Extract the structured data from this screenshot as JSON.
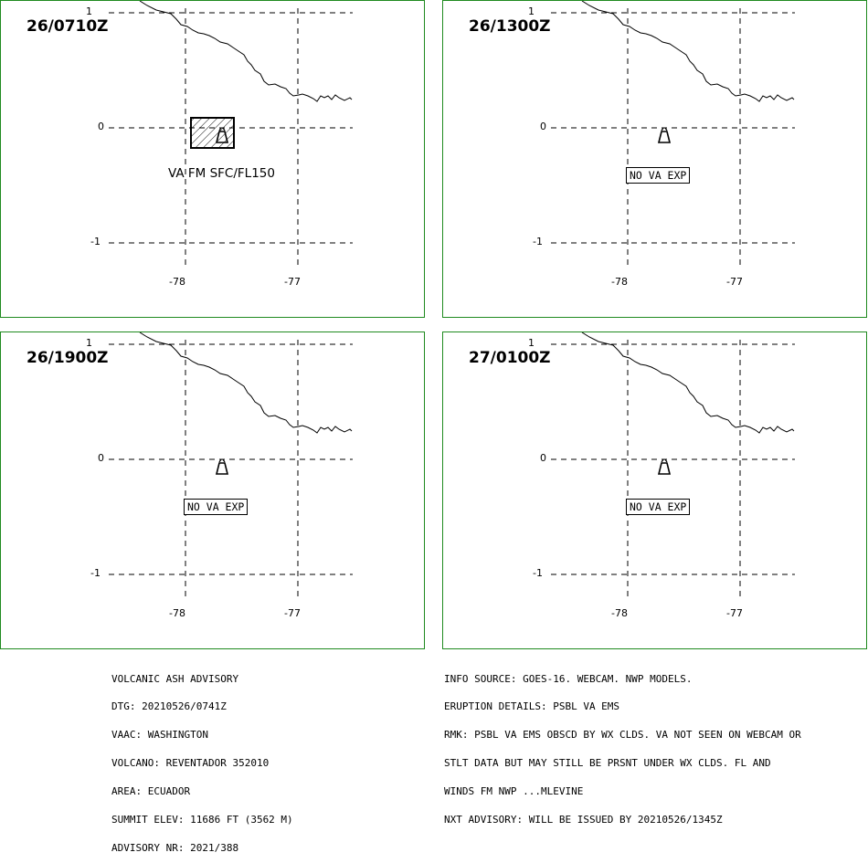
{
  "panels": [
    {
      "title": "26/0710Z",
      "ash_area": true,
      "label": "VA FM SFC/FL150",
      "label_boxed": false
    },
    {
      "title": "26/1300Z",
      "ash_area": false,
      "label": "NO VA EXP",
      "label_boxed": true
    },
    {
      "title": "26/1900Z",
      "ash_area": false,
      "label": "NO VA EXP",
      "label_boxed": true
    },
    {
      "title": "27/0100Z",
      "ash_area": false,
      "label": "NO VA EXP",
      "label_boxed": true
    }
  ],
  "axes": {
    "lat_labels": [
      "1",
      "0",
      "-1"
    ],
    "lon_labels": [
      "-78",
      "-77"
    ]
  },
  "advisory_left": [
    "VOLCANIC ASH ADVISORY",
    "DTG: 20210526/0741Z",
    "VAAC: WASHINGTON",
    "VOLCANO: REVENTADOR 352010",
    "AREA: ECUADOR",
    "SUMMIT ELEV: 11686 FT (3562 M)",
    "ADVISORY NR: 2021/388"
  ],
  "advisory_right": [
    "INFO SOURCE: GOES-16. WEBCAM. NWP MODELS.",
    "ERUPTION DETAILS: PSBL VA EMS",
    "RMK: PSBL VA EMS OBSCD BY WX CLDS. VA NOT SEEN ON WEBCAM OR",
    "STLT DATA BUT MAY STILL BE PRSNT UNDER WX CLDS. FL AND",
    "WINDS FM NWP ...MLEVINE",
    "NXT ADVISORY: WILL BE ISSUED BY 20210526/1345Z"
  ],
  "colors": {
    "panel_border": "#1f8a1f",
    "lines": "#000000"
  }
}
